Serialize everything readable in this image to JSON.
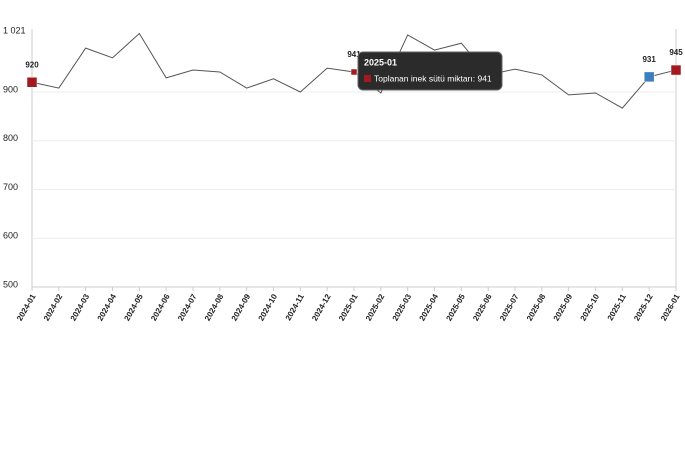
{
  "chart_data": {
    "type": "line",
    "categories": [
      "2024-01",
      "2024-02",
      "2024-03",
      "2024-04",
      "2024-05",
      "2024-06",
      "2024-07",
      "2024-08",
      "2024-09",
      "2024-10",
      "2024-11",
      "2024-12",
      "2025-01",
      "2025-02",
      "2025-03",
      "2025-04",
      "2025-05",
      "2025-06",
      "2025-07",
      "2025-08",
      "2025-09",
      "2025-10",
      "2025-11",
      "2025-12",
      "2026-01"
    ],
    "series": [
      {
        "name": "Toplanan inek sütü miktarı",
        "color": "#555555",
        "values": [
          920,
          908,
          990,
          970,
          1020,
          929,
          945,
          941,
          908,
          927,
          900,
          949,
          941,
          898,
          1017,
          986,
          1000,
          935,
          947,
          935,
          894,
          898,
          867,
          931,
          945
        ]
      }
    ],
    "ylim": [
      500,
      1021
    ],
    "yticks": [
      500,
      600,
      700,
      800,
      900,
      {
        "value": 1021,
        "label": "1 021"
      }
    ],
    "labeled_points": [
      0,
      12,
      23,
      24
    ],
    "markers": [
      {
        "index": 0,
        "color": "#a3191f"
      },
      {
        "index": 12,
        "color": "#a3191f"
      },
      {
        "index": 23,
        "color": "#3d7ebf"
      },
      {
        "index": 24,
        "color": "#a3191f"
      }
    ],
    "tooltip": {
      "title": "2025-01",
      "label": "Toplanan inek sütü miktarı: 941",
      "color": "#a3191f"
    }
  }
}
